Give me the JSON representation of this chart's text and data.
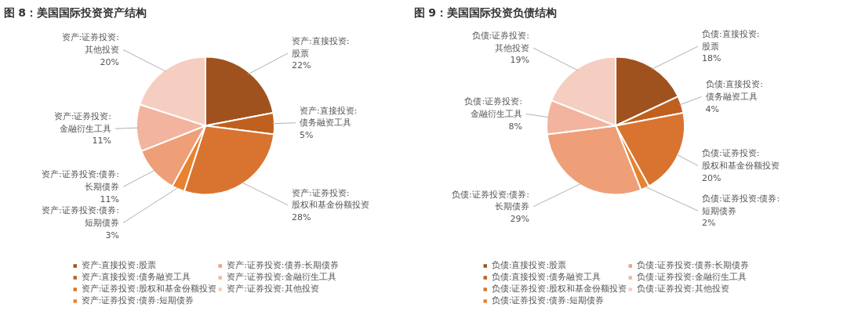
{
  "chart_data": [
    {
      "type": "pie",
      "title": "图 8：美国国际投资资产结构",
      "legend": "bottom",
      "categories": [
        "资产:直接投资:股票",
        "资产:直接投资:债务融资工具",
        "资产:证券投资:股权和基金份额投资",
        "资产:证券投资:债券:短期债券",
        "资产:证券投资:债券:长期债券",
        "资产:证券投资:金融衍生工具",
        "资产:证券投资:其他投资"
      ],
      "values": [
        22,
        5,
        28,
        3,
        11,
        11,
        20
      ],
      "value_labels": [
        "22%",
        "5%",
        "28%",
        "3%",
        "11%",
        "11%",
        "20%"
      ],
      "colors": [
        "#a0521e",
        "#c0601e",
        "#d87430",
        "#e8822e",
        "#ee9f78",
        "#f2b49e",
        "#f6cdc1"
      ]
    },
    {
      "type": "pie",
      "title": "图 9：美国国际投资负债结构",
      "legend": "bottom",
      "categories": [
        "负债:直接投资:股票",
        "负债:直接投资:债务融资工具",
        "负债:证券投资:股权和基金份额投资",
        "负债:证券投资:债券:短期债券",
        "负债:证券投资:债券:长期债券",
        "负债:证券投资:金融衍生工具",
        "负债:证券投资:其他投资"
      ],
      "values": [
        18,
        4,
        20,
        2,
        29,
        8,
        19
      ],
      "value_labels": [
        "18%",
        "4%",
        "20%",
        "2%",
        "29%",
        "8%",
        "19%"
      ],
      "colors": [
        "#a0521e",
        "#c0601e",
        "#d87430",
        "#e8822e",
        "#ee9f78",
        "#f2b49e",
        "#f6cdc1"
      ]
    }
  ]
}
